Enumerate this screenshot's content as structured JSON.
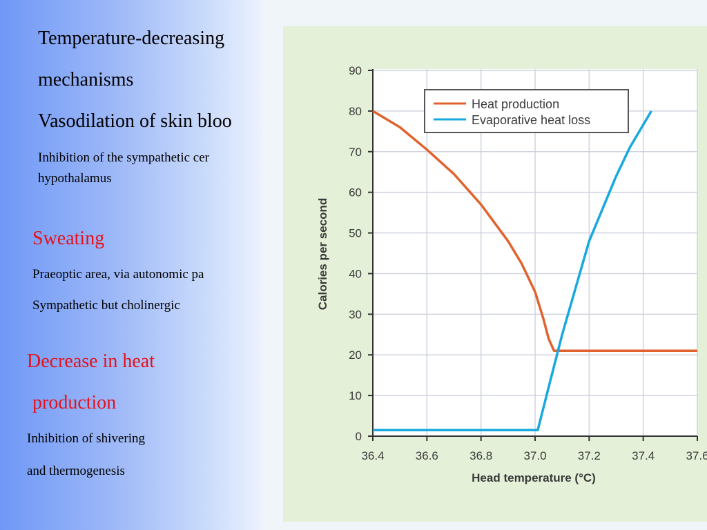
{
  "left_text": {
    "line1": "Temperature-decreasing",
    "line2": "mechanisms",
    "line3": "Vasodilation of skin bloo",
    "line4": "Inhibition of the sympathetic cer",
    "line5": "hypothalamus",
    "sweating_heading": "Sweating",
    "sweating_line1": "Praeoptic area, via autonomic pa",
    "sweating_line2": "Sympathetic but cholinergic",
    "decrease_heading_line1": "Decrease in heat",
    "decrease_heading_line2": "production",
    "decrease_line1": "Inhibition of shivering",
    "decrease_line2": "and thermogenesis"
  },
  "colors": {
    "heat_production": "#e0632f",
    "evaporative_heat_loss": "#17a8df",
    "figure_background": "#e5f0d8",
    "heading_red": "#e4111b"
  },
  "chart_data": {
    "type": "line",
    "xlabel": "Head temperature (°C)",
    "ylabel": "Calories per second",
    "xlim": [
      36.4,
      37.6
    ],
    "ylim": [
      0,
      90
    ],
    "xticks": [
      "36.4",
      "36.6",
      "36.8",
      "37.0",
      "37.2",
      "37.4",
      "37.6"
    ],
    "yticks": [
      "0",
      "10",
      "20",
      "30",
      "40",
      "50",
      "60",
      "70",
      "80",
      "90"
    ],
    "grid": true,
    "legend_position": "top-right",
    "series": [
      {
        "name": "Heat production",
        "x": [
          36.4,
          36.5,
          36.6,
          36.7,
          36.8,
          36.9,
          36.95,
          37.0,
          37.03,
          37.05,
          37.07,
          37.2,
          37.4,
          37.6
        ],
        "y": [
          80,
          76,
          70.5,
          64.5,
          57,
          48,
          42.5,
          35.5,
          29,
          24,
          21,
          21,
          21,
          21
        ]
      },
      {
        "name": "Evaporative heat loss",
        "x": [
          36.4,
          37.0,
          37.01,
          37.05,
          37.1,
          37.2,
          37.3,
          37.35,
          37.43
        ],
        "y": [
          1.5,
          1.5,
          1.5,
          12,
          25,
          48,
          64,
          71,
          80
        ]
      }
    ]
  }
}
